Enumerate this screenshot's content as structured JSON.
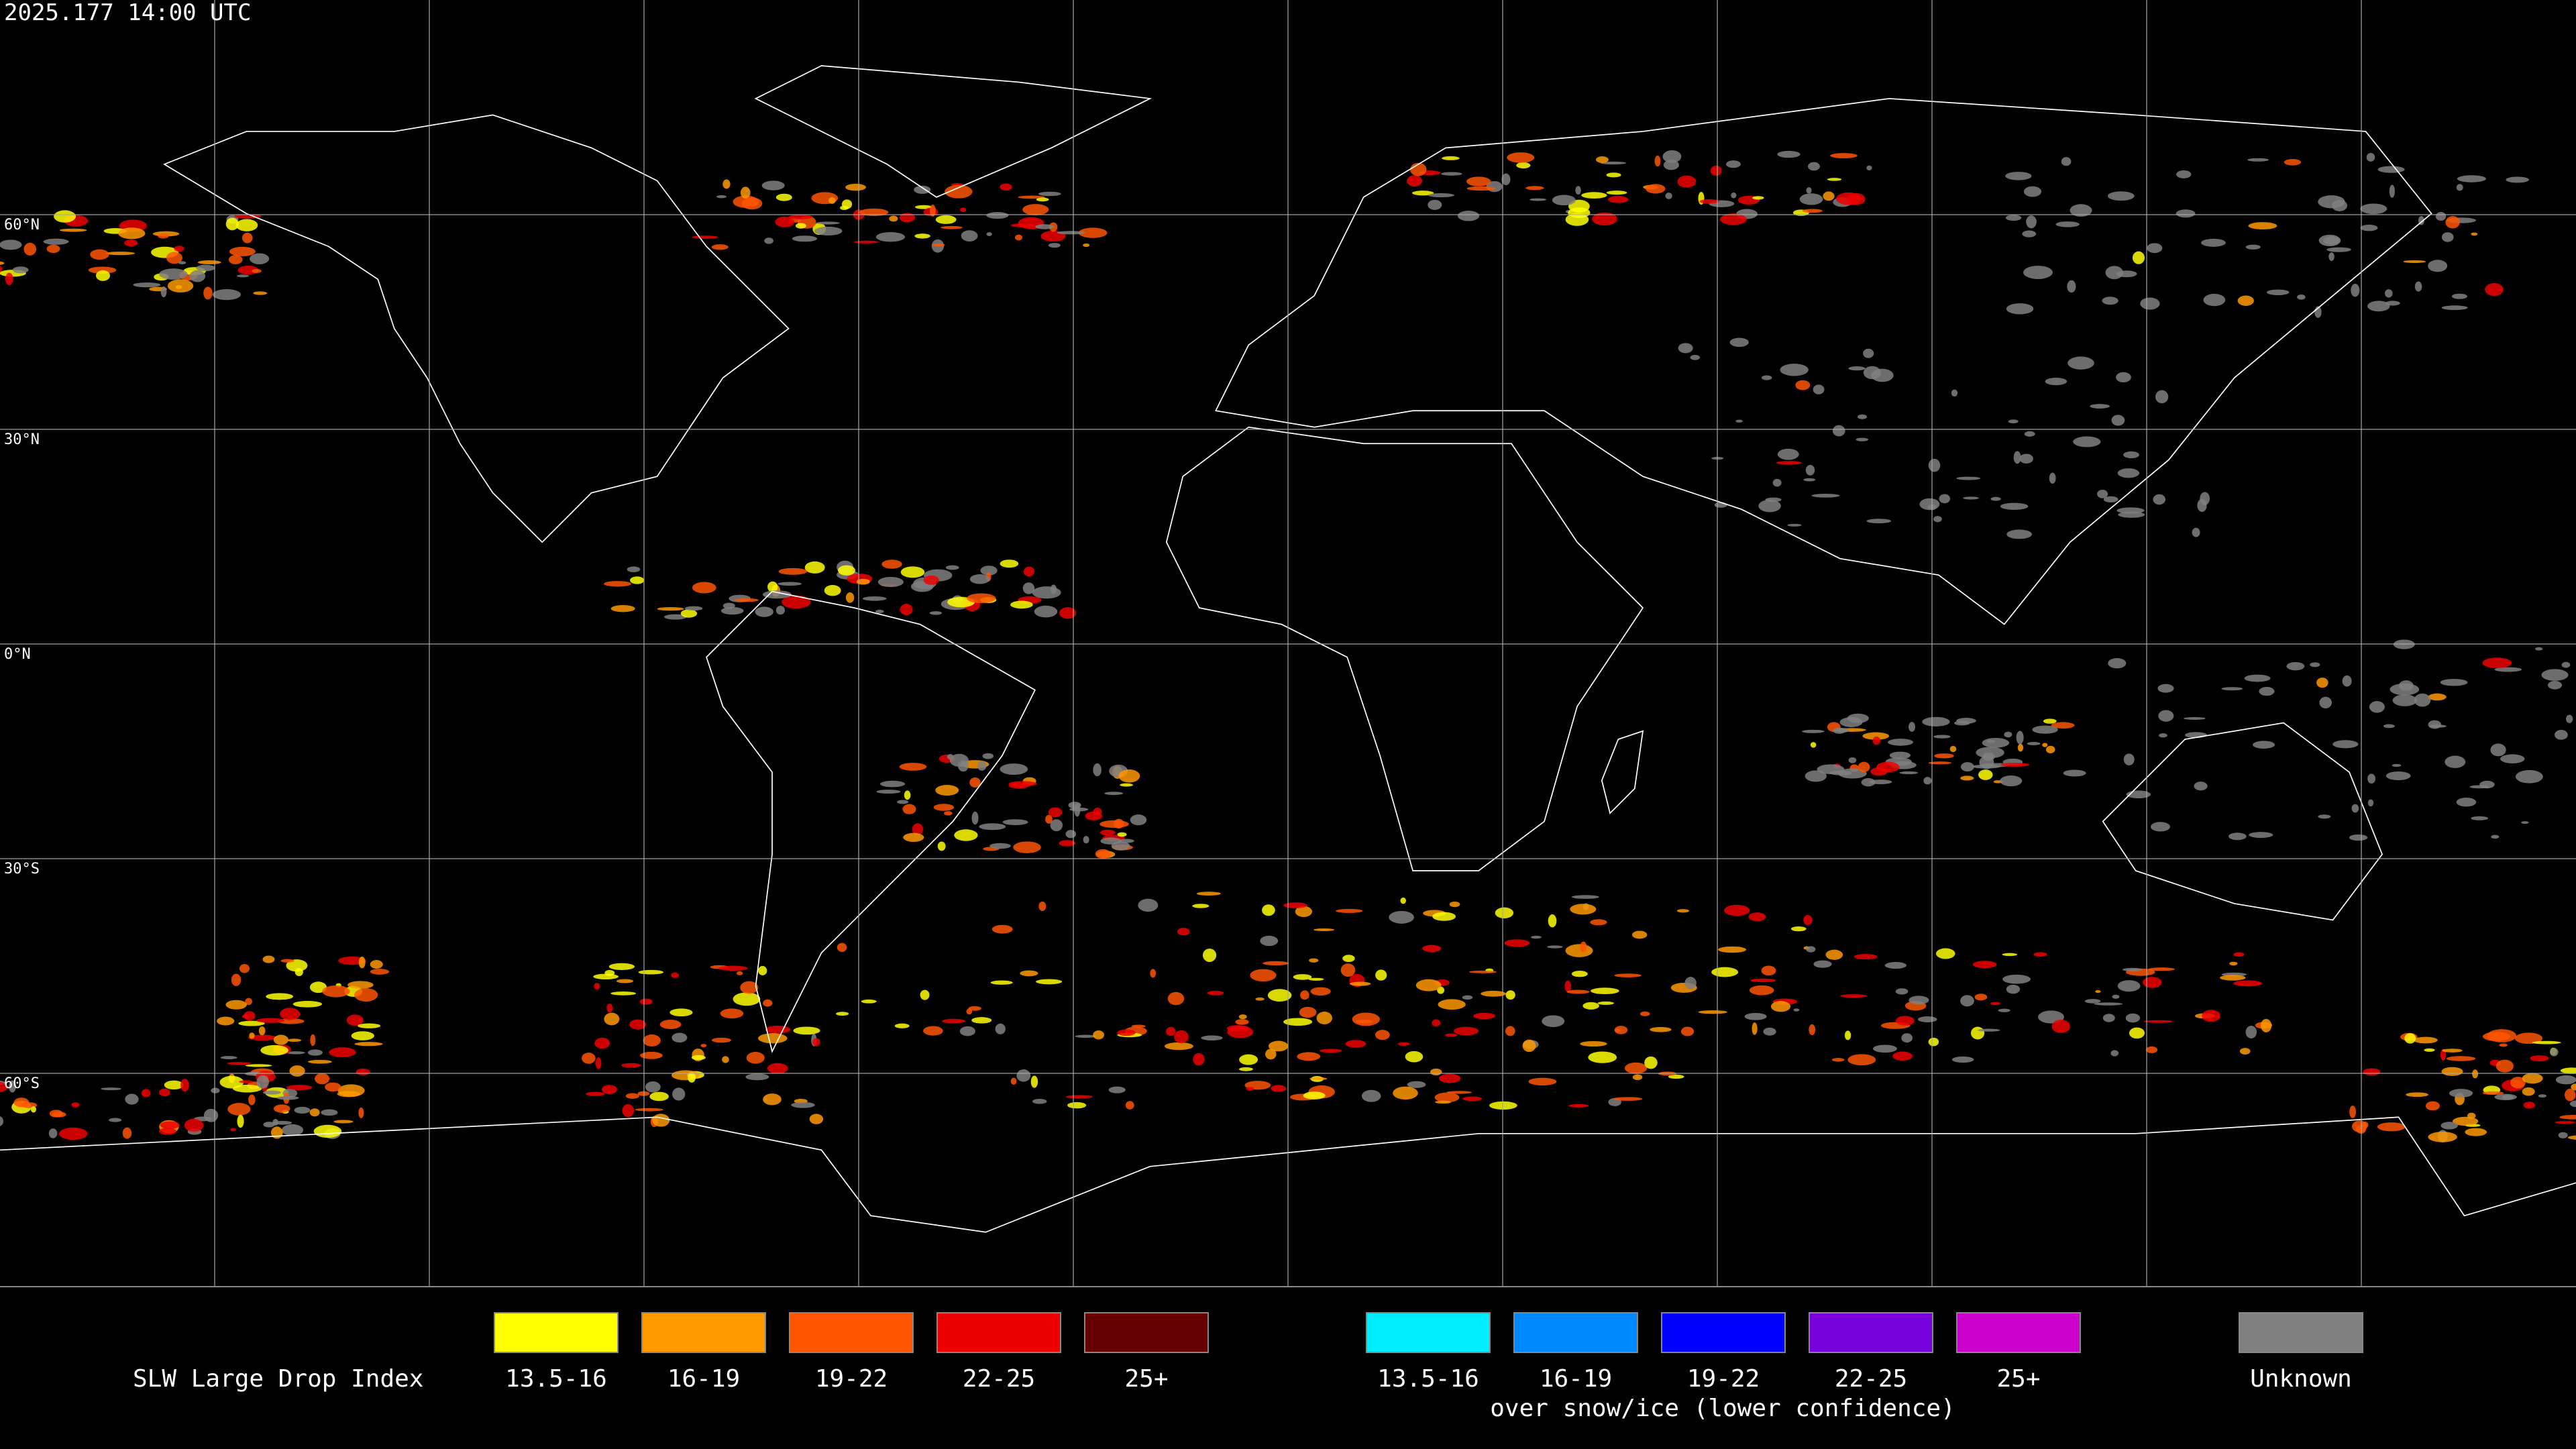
{
  "timestamp": "2025.177 14:00 UTC",
  "map": {
    "latitude_labels": [
      "60°N",
      "30°N",
      "0°N",
      "30°S",
      "60°S"
    ]
  },
  "legend": {
    "title": "SLW Large Drop Index",
    "groups": [
      {
        "items": [
          {
            "label": "13.5-16",
            "color": "#ffff00"
          },
          {
            "label": "16-19",
            "color": "#ff9900"
          },
          {
            "label": "19-22",
            "color": "#ff5500"
          },
          {
            "label": "22-25",
            "color": "#ee0000"
          },
          {
            "label": "25+",
            "color": "#660000"
          }
        ]
      },
      {
        "items": [
          {
            "label": "13.5-16",
            "color": "#00eeff"
          },
          {
            "label": "16-19",
            "color": "#0088ff"
          },
          {
            "label": "19-22",
            "color": "#0000ff"
          },
          {
            "label": "22-25",
            "color": "#7700dd"
          },
          {
            "label": "25+",
            "color": "#cc00cc"
          }
        ],
        "caption": "over snow/ice (lower confidence)"
      }
    ],
    "unknown": {
      "label": "Unknown",
      "color": "#808080"
    }
  }
}
